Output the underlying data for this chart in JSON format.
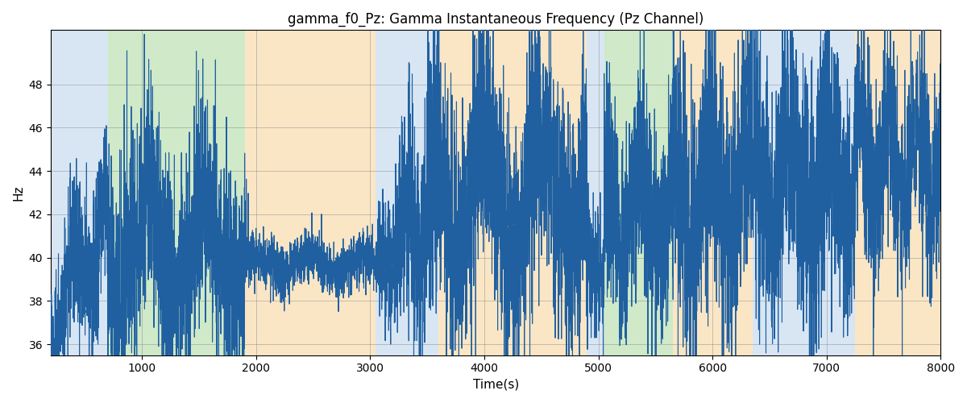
{
  "title": "gamma_f0_Pz: Gamma Instantaneous Frequency (Pz Channel)",
  "xlabel": "Time(s)",
  "ylabel": "Hz",
  "xlim": [
    200,
    8000
  ],
  "ylim": [
    35.5,
    50.5
  ],
  "yticks": [
    36,
    38,
    40,
    42,
    44,
    46,
    48
  ],
  "xticks": [
    1000,
    2000,
    3000,
    4000,
    5000,
    6000,
    7000,
    8000
  ],
  "line_color": "#2060a0",
  "line_width": 0.8,
  "background_bands": [
    {
      "xmin": 200,
      "xmax": 700,
      "color": "#aac8e8",
      "alpha": 0.45
    },
    {
      "xmin": 700,
      "xmax": 1900,
      "color": "#88c878",
      "alpha": 0.4
    },
    {
      "xmin": 1900,
      "xmax": 3050,
      "color": "#f5c880",
      "alpha": 0.45
    },
    {
      "xmin": 3050,
      "xmax": 3600,
      "color": "#aac8e8",
      "alpha": 0.45
    },
    {
      "xmin": 3600,
      "xmax": 4900,
      "color": "#f5c880",
      "alpha": 0.45
    },
    {
      "xmin": 4900,
      "xmax": 5050,
      "color": "#aac8e8",
      "alpha": 0.45
    },
    {
      "xmin": 5050,
      "xmax": 5650,
      "color": "#88c878",
      "alpha": 0.4
    },
    {
      "xmin": 5650,
      "xmax": 6350,
      "color": "#f5c880",
      "alpha": 0.45
    },
    {
      "xmin": 6350,
      "xmax": 7250,
      "color": "#aac8e8",
      "alpha": 0.45
    },
    {
      "xmin": 7250,
      "xmax": 8000,
      "color": "#f5c880",
      "alpha": 0.45
    }
  ]
}
